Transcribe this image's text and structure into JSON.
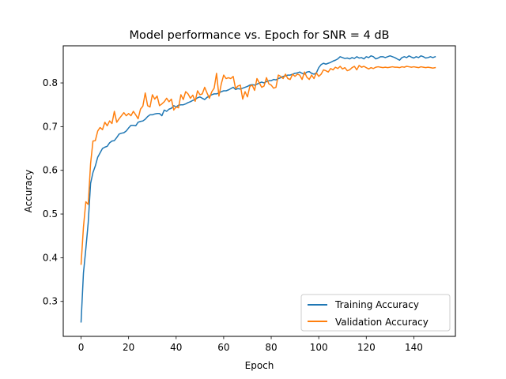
{
  "chart_data": {
    "type": "line",
    "title": "Model performance vs. Epoch for SNR = 4 dB",
    "xlabel": "Epoch",
    "ylabel": "Accuracy",
    "xlim": [
      -7.5,
      157.5
    ],
    "ylim": [
      0.22,
      0.885
    ],
    "xticks": [
      0,
      20,
      40,
      60,
      80,
      100,
      120,
      140
    ],
    "yticks": [
      0.3,
      0.4,
      0.5,
      0.6,
      0.7,
      0.8
    ],
    "grid": false,
    "legend_position": "lower-right",
    "series": [
      {
        "name": "Training Accuracy",
        "color": "#1f77b4",
        "y": [
          0.253,
          0.365,
          0.42,
          0.48,
          0.57,
          0.595,
          0.61,
          0.63,
          0.64,
          0.65,
          0.653,
          0.655,
          0.663,
          0.667,
          0.668,
          0.675,
          0.683,
          0.685,
          0.686,
          0.69,
          0.697,
          0.703,
          0.703,
          0.702,
          0.71,
          0.712,
          0.713,
          0.717,
          0.723,
          0.727,
          0.727,
          0.729,
          0.73,
          0.73,
          0.725,
          0.738,
          0.735,
          0.74,
          0.742,
          0.748,
          0.745,
          0.749,
          0.75,
          0.75,
          0.752,
          0.755,
          0.757,
          0.76,
          0.762,
          0.766,
          0.768,
          0.765,
          0.762,
          0.767,
          0.77,
          0.773,
          0.775,
          0.775,
          0.777,
          0.78,
          0.782,
          0.782,
          0.784,
          0.787,
          0.79,
          0.785,
          0.787,
          0.786,
          0.788,
          0.79,
          0.792,
          0.795,
          0.796,
          0.795,
          0.797,
          0.8,
          0.802,
          0.8,
          0.803,
          0.805,
          0.805,
          0.808,
          0.807,
          0.81,
          0.812,
          0.815,
          0.816,
          0.818,
          0.818,
          0.82,
          0.822,
          0.823,
          0.825,
          0.822,
          0.82,
          0.825,
          0.826,
          0.822,
          0.82,
          0.823,
          0.835,
          0.842,
          0.845,
          0.843,
          0.845,
          0.847,
          0.85,
          0.852,
          0.855,
          0.86,
          0.858,
          0.856,
          0.857,
          0.855,
          0.858,
          0.856,
          0.86,
          0.857,
          0.858,
          0.855,
          0.86,
          0.858,
          0.862,
          0.86,
          0.855,
          0.857,
          0.86,
          0.86,
          0.858,
          0.86,
          0.862,
          0.86,
          0.858,
          0.855,
          0.852,
          0.858,
          0.86,
          0.858,
          0.862,
          0.859,
          0.857,
          0.86,
          0.858,
          0.862,
          0.86,
          0.857,
          0.858,
          0.86,
          0.858,
          0.86
        ]
      },
      {
        "name": "Validation Accuracy",
        "color": "#ff7f0e",
        "y": [
          0.385,
          0.47,
          0.528,
          0.522,
          0.615,
          0.667,
          0.668,
          0.69,
          0.698,
          0.693,
          0.71,
          0.702,
          0.713,
          0.707,
          0.735,
          0.71,
          0.718,
          0.725,
          0.732,
          0.725,
          0.73,
          0.725,
          0.735,
          0.727,
          0.718,
          0.74,
          0.747,
          0.777,
          0.748,
          0.745,
          0.773,
          0.763,
          0.77,
          0.748,
          0.752,
          0.757,
          0.765,
          0.757,
          0.763,
          0.738,
          0.745,
          0.743,
          0.773,
          0.762,
          0.78,
          0.775,
          0.765,
          0.772,
          0.758,
          0.782,
          0.773,
          0.775,
          0.79,
          0.777,
          0.765,
          0.78,
          0.788,
          0.822,
          0.77,
          0.798,
          0.818,
          0.81,
          0.812,
          0.81,
          0.815,
          0.787,
          0.793,
          0.795,
          0.763,
          0.78,
          0.768,
          0.792,
          0.795,
          0.783,
          0.81,
          0.8,
          0.79,
          0.793,
          0.812,
          0.798,
          0.795,
          0.788,
          0.79,
          0.818,
          0.815,
          0.81,
          0.82,
          0.81,
          0.808,
          0.82,
          0.815,
          0.82,
          0.818,
          0.808,
          0.825,
          0.813,
          0.808,
          0.818,
          0.81,
          0.823,
          0.815,
          0.82,
          0.83,
          0.828,
          0.825,
          0.833,
          0.83,
          0.836,
          0.833,
          0.838,
          0.832,
          0.835,
          0.828,
          0.83,
          0.835,
          0.838,
          0.83,
          0.84,
          0.836,
          0.838,
          0.835,
          0.832,
          0.835,
          0.833,
          0.836,
          0.837,
          0.836,
          0.835,
          0.836,
          0.835,
          0.836,
          0.837,
          0.836,
          0.836,
          0.835,
          0.837,
          0.836,
          0.838,
          0.837,
          0.836,
          0.837,
          0.836,
          0.835,
          0.837,
          0.836,
          0.835,
          0.836,
          0.835,
          0.834,
          0.835
        ]
      }
    ]
  }
}
